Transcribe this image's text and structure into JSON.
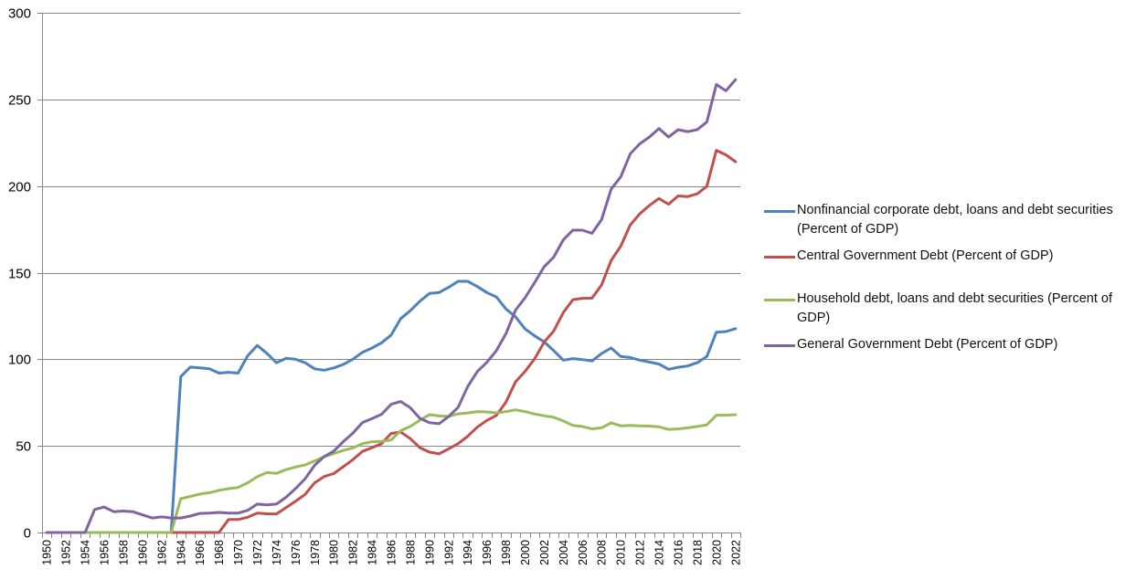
{
  "chart_data": {
    "type": "line",
    "title": "",
    "xlabel": "",
    "ylabel": "",
    "ylim": [
      0,
      300
    ],
    "yticks": [
      0,
      50,
      100,
      150,
      200,
      250,
      300
    ],
    "grid": true,
    "legend_position": "right",
    "x": [
      1950,
      1951,
      1952,
      1953,
      1954,
      1955,
      1956,
      1957,
      1958,
      1959,
      1960,
      1961,
      1962,
      1963,
      1964,
      1965,
      1966,
      1967,
      1968,
      1969,
      1970,
      1971,
      1972,
      1973,
      1974,
      1975,
      1976,
      1977,
      1978,
      1979,
      1980,
      1981,
      1982,
      1983,
      1984,
      1985,
      1986,
      1987,
      1988,
      1989,
      1990,
      1991,
      1992,
      1993,
      1994,
      1995,
      1996,
      1997,
      1998,
      1999,
      2000,
      2001,
      2002,
      2003,
      2004,
      2005,
      2006,
      2007,
      2008,
      2009,
      2010,
      2011,
      2012,
      2013,
      2014,
      2015,
      2016,
      2017,
      2018,
      2019,
      2020,
      2021,
      2022
    ],
    "xtick_labels": [
      "1950",
      "1952",
      "1954",
      "1956",
      "1958",
      "1960",
      "1962",
      "1964",
      "1966",
      "1968",
      "1970",
      "1972",
      "1974",
      "1976",
      "1978",
      "1980",
      "1982",
      "1984",
      "1986",
      "1988",
      "1990",
      "1992",
      "1994",
      "1996",
      "1998",
      "2000",
      "2002",
      "2004",
      "2006",
      "2008",
      "2010",
      "2012",
      "2014",
      "2016",
      "2018",
      "2020",
      "2022"
    ],
    "series": [
      {
        "name": "Nonfinancial corporate debt, loans and debt securities (Percent of GDP)",
        "color": "#4F81BD",
        "values": [
          0,
          0,
          0,
          0,
          0,
          0,
          0,
          0,
          0,
          0,
          0,
          0,
          0,
          0,
          90,
          95.5,
          95,
          94.5,
          92,
          92.5,
          92,
          102,
          108,
          103.5,
          98,
          100.5,
          100,
          98,
          94.5,
          93.7,
          95,
          97,
          100,
          104,
          106.5,
          109.5,
          114,
          123.5,
          128,
          133.5,
          138,
          138.5,
          141.5,
          145,
          145,
          142,
          138.5,
          136,
          129,
          124.5,
          117.5,
          113.5,
          110,
          105,
          99.5,
          100.4,
          99.8,
          99,
          103.3,
          106.5,
          101.6,
          101,
          99.5,
          98.4,
          97.2,
          94.2,
          95.4,
          96.1,
          98,
          101.6,
          115.6,
          116,
          117.7
        ]
      },
      {
        "name": "Central Government Debt (Percent of GDP)",
        "color": "#C0504D",
        "values": [
          0,
          0,
          0,
          0,
          0,
          0,
          0,
          0,
          0,
          0,
          0,
          0,
          0,
          0,
          0,
          0,
          0,
          0,
          0,
          7.5,
          7.5,
          8.8,
          11.2,
          10.8,
          10.7,
          14.4,
          18,
          22,
          28.7,
          32.3,
          34,
          38,
          42,
          46.8,
          49,
          51.3,
          57.2,
          58,
          54.2,
          49,
          46.4,
          45.4,
          48.3,
          51.3,
          55.5,
          60.8,
          64.7,
          67.6,
          75.3,
          87,
          93,
          100.3,
          110,
          116.3,
          127,
          134.4,
          135.2,
          135.3,
          142.9,
          157,
          165.3,
          177.5,
          184,
          188.8,
          192.8,
          189.5,
          194.3,
          193.9,
          195.5,
          199.8,
          220.6,
          218,
          214
        ]
      },
      {
        "name": "Household debt, loans and debt securities (Percent of GDP)",
        "color": "#9BBB59",
        "values": [
          0,
          0,
          0,
          0,
          0,
          0,
          0,
          0,
          0,
          0,
          0,
          0,
          0,
          0,
          19.5,
          20.8,
          22.2,
          23,
          24.3,
          25.3,
          26,
          28.7,
          32.2,
          34.6,
          34.1,
          36.3,
          37.8,
          39,
          41.3,
          43.8,
          45.5,
          47.4,
          48.8,
          51.3,
          52.4,
          52.6,
          53.4,
          58.8,
          61.2,
          64.8,
          68,
          67.3,
          67,
          68.5,
          69,
          69.8,
          69.6,
          69,
          69.8,
          70.8,
          69.8,
          68.4,
          67.4,
          66.5,
          64.4,
          61.8,
          61.2,
          59.8,
          60.4,
          63.3,
          61.6,
          61.8,
          61.6,
          61.4,
          61,
          59.5,
          59.8,
          60.4,
          61.2,
          62.1,
          67.7,
          67.7,
          68
        ]
      },
      {
        "name": "General Government Debt (Percent of GDP)",
        "color": "#8064A2",
        "values": [
          0,
          0,
          0,
          0,
          0,
          13.3,
          14.7,
          12,
          12.4,
          12,
          10.2,
          8.4,
          9,
          8.4,
          8.4,
          9.5,
          11,
          11.2,
          11.6,
          11.2,
          11.2,
          12.8,
          16.4,
          16,
          16.4,
          20.3,
          25.3,
          31,
          38.8,
          43.8,
          47,
          52.5,
          57.3,
          63.5,
          65.8,
          68.2,
          74,
          75.6,
          72,
          65.9,
          63.4,
          62.8,
          66.9,
          72.3,
          84.2,
          92.9,
          98.2,
          105,
          114.8,
          128.4,
          135.5,
          144.3,
          153.5,
          159,
          169,
          174.5,
          174.5,
          172.7,
          180.6,
          198.2,
          205.3,
          218.6,
          224.4,
          228.3,
          233.2,
          228.3,
          232.5,
          231.4,
          232.5,
          237,
          258.6,
          255,
          261.4
        ]
      }
    ]
  },
  "legend": {
    "items": [
      {
        "label": "Nonfinancial corporate debt, loans and debt securities (Percent of GDP)",
        "color": "#4F81BD"
      },
      {
        "label": "Central Government Debt (Percent of GDP)",
        "color": "#C0504D"
      },
      {
        "label": "Household debt, loans and debt securities (Percent of GDP)",
        "color": "#9BBB59"
      },
      {
        "label": "General Government Debt (Percent of GDP)",
        "color": "#8064A2"
      }
    ]
  },
  "style": {
    "gridline_color": "#868686",
    "axis_color": "#868686"
  }
}
